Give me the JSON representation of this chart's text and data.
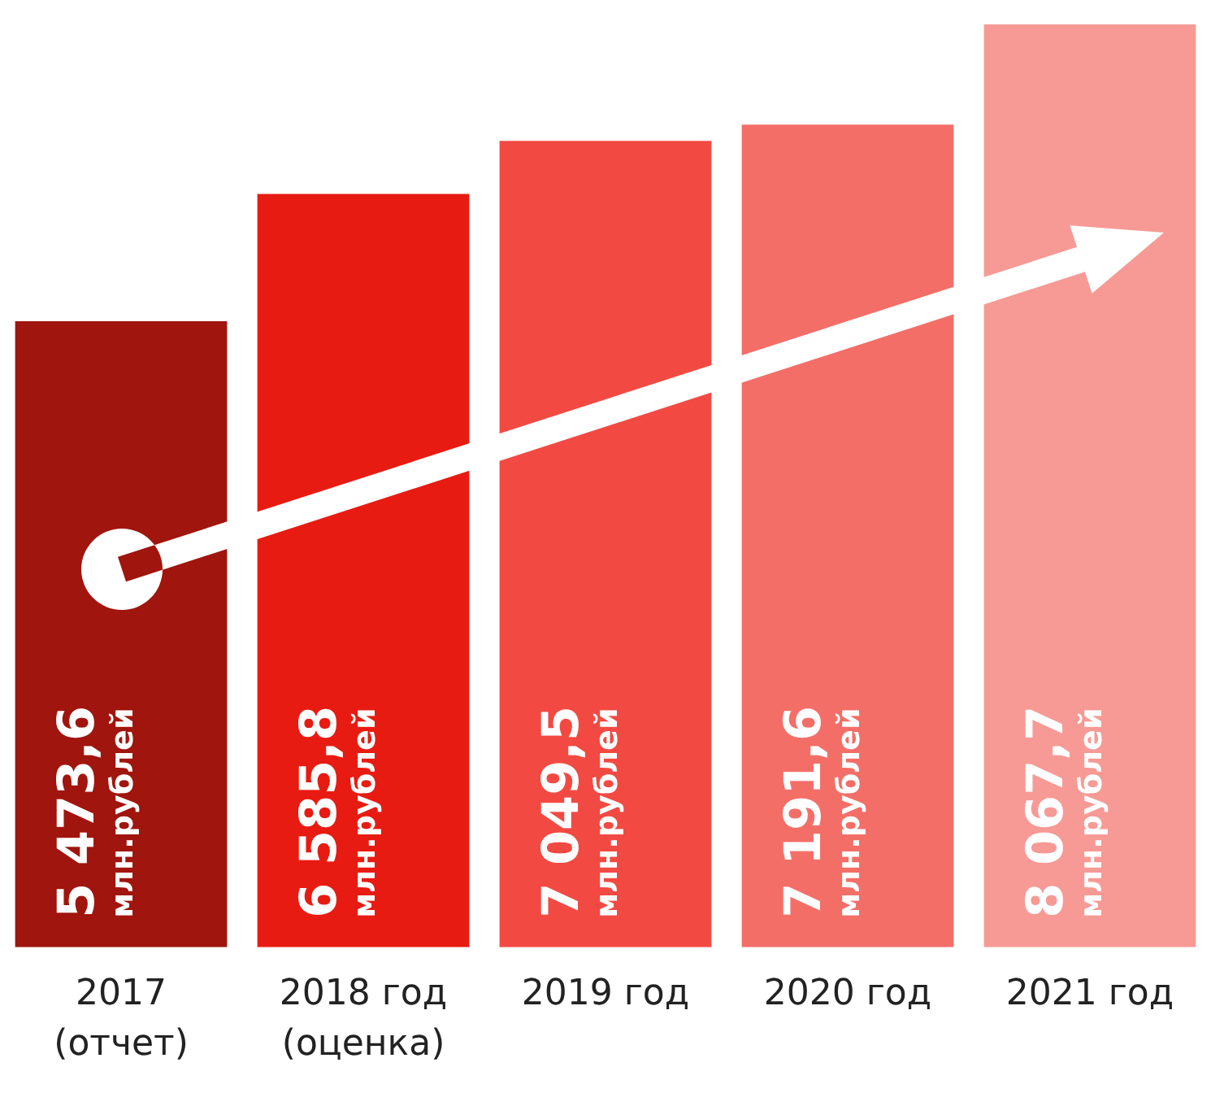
{
  "chart_data": {
    "type": "bar",
    "categories": [
      "2017\n(отчет)",
      "2018 год\n(оценка)",
      "2019 год",
      "2020 год",
      "2021 год"
    ],
    "values": [
      5473.6,
      6585.8,
      7049.5,
      7191.6,
      8067.7
    ],
    "colors": [
      "#a0150e",
      "#e81b12",
      "#f24a43",
      "#f46e68",
      "#f79a95"
    ],
    "value_labels": [
      "5 473,6\nмлн.рублей",
      "6 585,8\nмлн.рублей",
      "7 049,5\nмлн.рублей",
      "7 191,6\nмлн.рублей",
      "8 067,7\nмлн.рублей"
    ],
    "grid": false,
    "legend": false
  }
}
